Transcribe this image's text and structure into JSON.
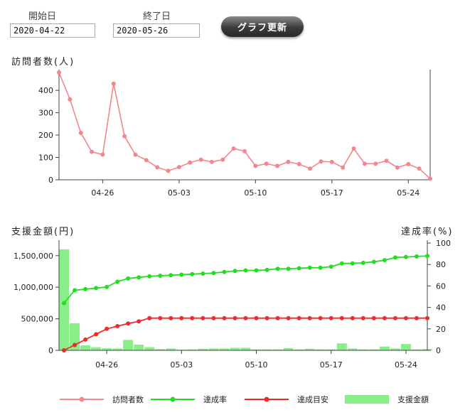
{
  "controls": {
    "start_label": "開始日",
    "start_value": "2020-04-22",
    "end_label": "終了日",
    "end_value": "2020-05-26",
    "update_button": "グラフ更新"
  },
  "colors": {
    "visitors": "#f4868c",
    "achievement": "#22dd22",
    "target": "#ee2a2a",
    "support_bar": "#88ee88"
  },
  "chart_data": [
    {
      "type": "line",
      "title": "訪問者数(人)",
      "x_tick_labels": [
        "04-26",
        "05-03",
        "05-10",
        "05-17",
        "05-24"
      ],
      "x_tick_days": [
        4,
        11,
        18,
        25,
        32
      ],
      "ylim": [
        0,
        480
      ],
      "y_ticks": [
        0,
        100,
        200,
        300,
        400
      ],
      "grid": false,
      "series": [
        {
          "name": "訪問者数",
          "color": "#f4868c",
          "values": [
            480,
            360,
            210,
            125,
            113,
            430,
            195,
            112,
            88,
            56,
            40,
            57,
            77,
            90,
            80,
            90,
            140,
            128,
            62,
            72,
            62,
            80,
            70,
            50,
            82,
            80,
            55,
            140,
            72,
            72,
            85,
            55,
            70,
            50,
            5
          ]
        }
      ]
    },
    {
      "type": "bar",
      "title": "支援金額(円)",
      "y2label": "達成率(%)",
      "x_tick_labels": [
        "04-26",
        "05-03",
        "05-10",
        "05-17",
        "05-24"
      ],
      "x_tick_days": [
        4,
        11,
        18,
        25,
        32
      ],
      "ylim": [
        0,
        1700000
      ],
      "y_ticks": [
        0,
        500000,
        1000000,
        1500000
      ],
      "y_tick_labels": [
        "0",
        "500,000",
        "1,000,000",
        "1,500,000"
      ],
      "y2lim": [
        0,
        100
      ],
      "y2_ticks": [
        0,
        20,
        40,
        60,
        80,
        100
      ],
      "grid": false,
      "legend": "bottom",
      "bars": {
        "name": "支援金額",
        "values": [
          1600000,
          430000,
          80000,
          50000,
          35000,
          30000,
          165000,
          90000,
          50000,
          20000,
          30000,
          10000,
          15000,
          25000,
          30000,
          30000,
          40000,
          40000,
          15000,
          15000,
          15000,
          35000,
          15000,
          25000,
          15000,
          15000,
          110000,
          30000,
          15000,
          15000,
          60000,
          30000,
          100000,
          15000,
          20000
        ]
      },
      "series": [
        {
          "name": "達成率",
          "color": "#22dd22",
          "axis": "right",
          "values": [
            44,
            56,
            57,
            58,
            59,
            64,
            67,
            68,
            69,
            69.5,
            70,
            70.5,
            71,
            71.5,
            72,
            73,
            74,
            74.5,
            74.5,
            75,
            76,
            76,
            76.5,
            77,
            77,
            78,
            81,
            81,
            81.5,
            82.5,
            84,
            86.5,
            87,
            87.5,
            88
          ]
        },
        {
          "name": "達成目安",
          "color": "#ee2a2a",
          "axis": "right",
          "values": [
            0,
            5,
            10,
            15,
            20,
            22.5,
            25,
            27,
            30,
            30,
            30,
            30,
            30,
            30,
            30,
            30,
            30,
            30,
            30,
            30,
            30,
            30,
            30,
            30,
            30,
            30,
            30,
            30,
            30,
            30,
            30,
            30,
            30,
            30,
            30
          ]
        }
      ]
    }
  ],
  "legend_items": [
    {
      "label": "訪問者数",
      "kind": "line",
      "color": "#f4868c"
    },
    {
      "label": "達成率",
      "kind": "line",
      "color": "#22dd22"
    },
    {
      "label": "達成目安",
      "kind": "line",
      "color": "#ee2a2a"
    },
    {
      "label": "支援金額",
      "kind": "box",
      "color": "#88ee88"
    }
  ]
}
